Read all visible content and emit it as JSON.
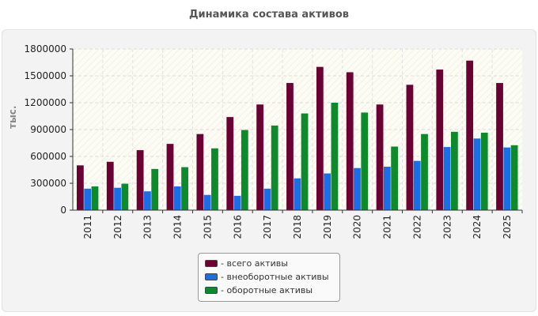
{
  "chart_data": {
    "type": "bar",
    "title": "Динамика состава активов",
    "ylabel": "тыс.",
    "xlabel": "",
    "categories": [
      "2011",
      "2012",
      "2013",
      "2014",
      "2015",
      "2016",
      "2017",
      "2018",
      "2019",
      "2020",
      "2021",
      "2022",
      "2023",
      "2024",
      "2025"
    ],
    "ylim": [
      0,
      1800000
    ],
    "yticks": [
      "0",
      "300000",
      "600000",
      "900000",
      "1200000",
      "1500000",
      "1800000"
    ],
    "grid": true,
    "legend_position": "bottom-center",
    "series": [
      {
        "name": "- всего активы",
        "color": "#6b0033",
        "values": [
          500000,
          540000,
          670000,
          740000,
          850000,
          1040000,
          1180000,
          1420000,
          1600000,
          1540000,
          1180000,
          1400000,
          1570000,
          1670000,
          1420000
        ]
      },
      {
        "name": "- внеоборотные активы",
        "color": "#1a6ee8",
        "values": [
          240000,
          250000,
          210000,
          265000,
          170000,
          160000,
          240000,
          355000,
          410000,
          470000,
          485000,
          550000,
          705000,
          800000,
          700000
        ]
      },
      {
        "name": "- оборотные активы",
        "color": "#0d8a2c",
        "values": [
          265000,
          295000,
          460000,
          480000,
          690000,
          895000,
          945000,
          1080000,
          1200000,
          1090000,
          710000,
          850000,
          875000,
          865000,
          725000
        ]
      }
    ]
  }
}
